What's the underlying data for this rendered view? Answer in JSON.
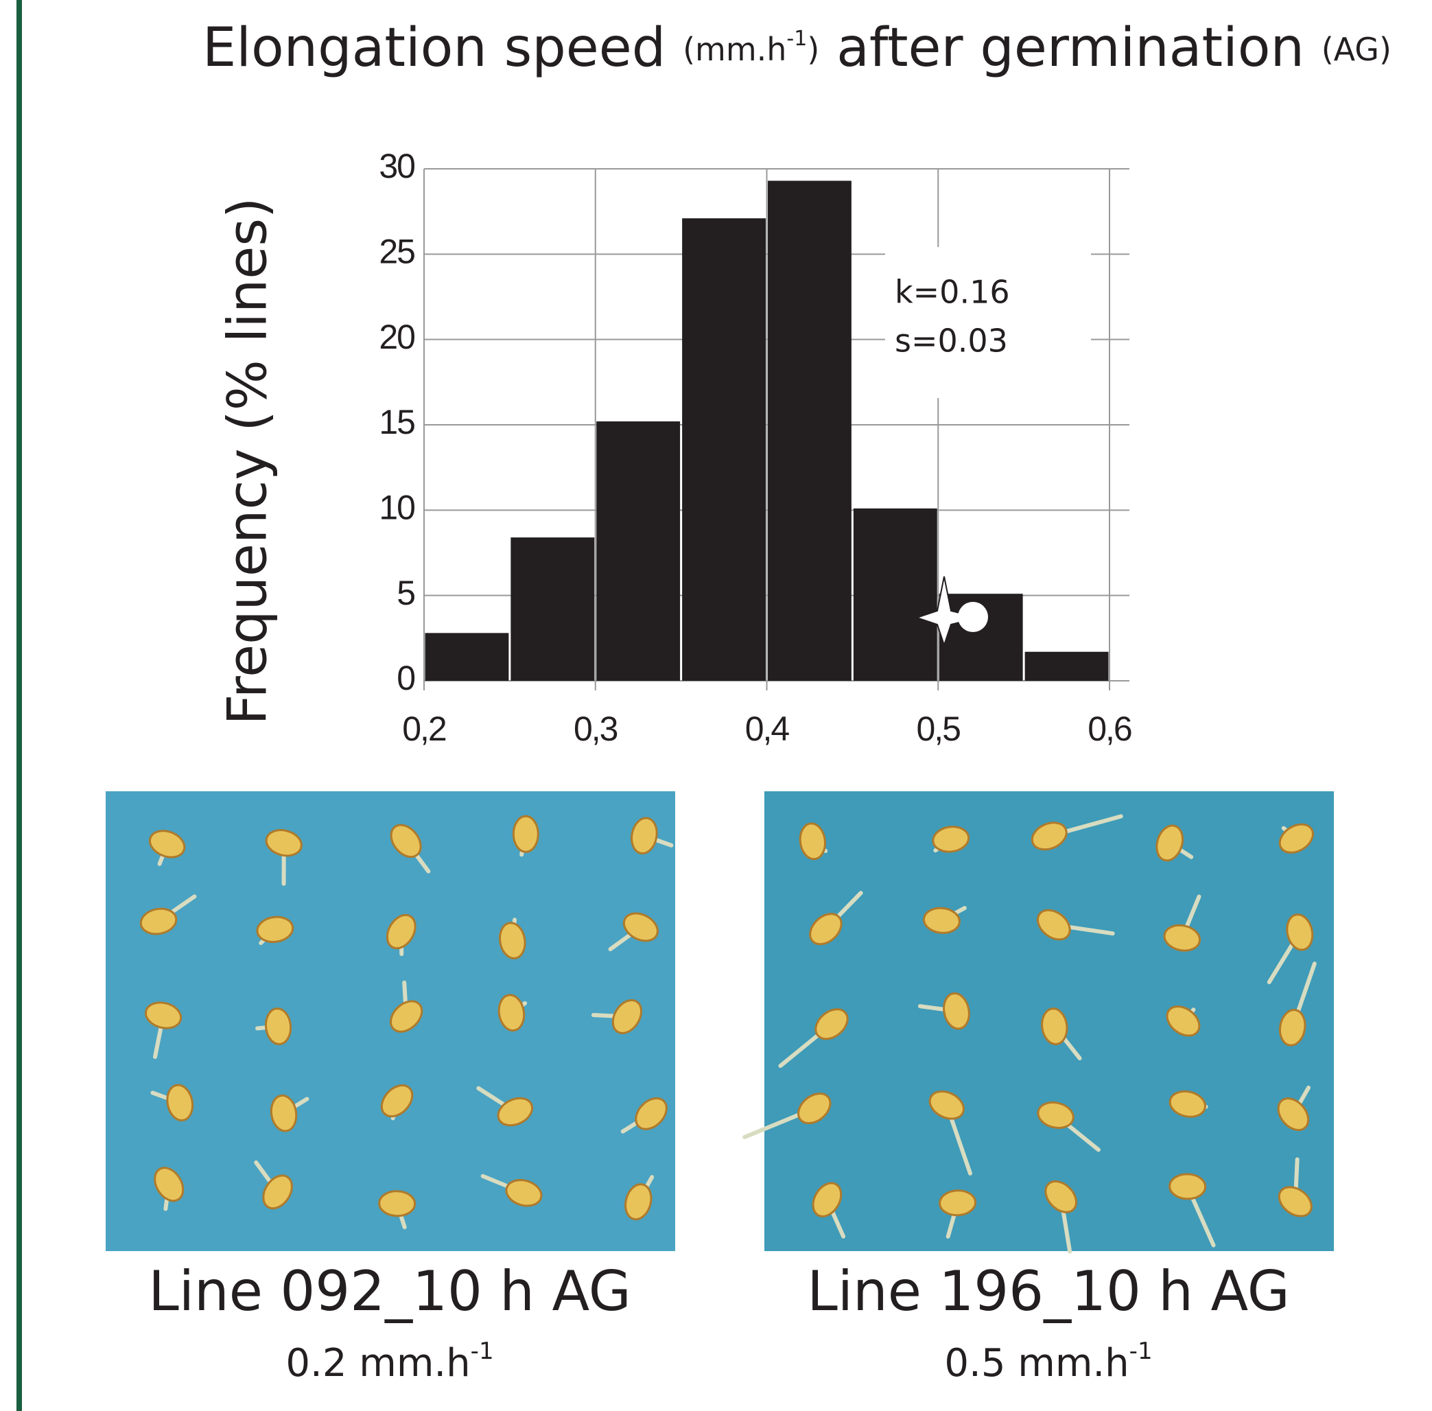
{
  "chart_data": {
    "type": "histogram",
    "title": [
      "Elongation speed",
      "(mm.h",
      "-1",
      ")",
      "after germination",
      "(AG)"
    ],
    "y_label": "Frequency (% lines)",
    "bins": [
      0.2,
      0.25,
      0.3,
      0.35,
      0.4,
      0.45,
      0.5,
      0.55,
      0.6
    ],
    "values": [
      2.8,
      8.4,
      15.2,
      27.1,
      29.3,
      10.1,
      5.1,
      1.7
    ],
    "color": "#231f20",
    "xlim": [
      0.2,
      0.6
    ],
    "xticks": [
      {
        "value": 0.2,
        "label": "0,2"
      },
      {
        "value": 0.3,
        "label": "0,3"
      },
      {
        "value": 0.4,
        "label": "0,4"
      },
      {
        "value": 0.5,
        "label": "0,5"
      },
      {
        "value": 0.6,
        "label": "0,6"
      }
    ],
    "ylim": [
      0,
      30
    ],
    "yticks": [
      0,
      5,
      10,
      15,
      20,
      25,
      30
    ],
    "grid": true,
    "annotations": [
      "k=0.16",
      "s=0.03"
    ]
  },
  "panels": [
    {
      "caption": "Line 092_10 h AG",
      "speed": "0.2 mm.h",
      "speed_sup": "-1"
    },
    {
      "caption": "Line 196_10 h AG",
      "speed": "0.5 mm.h",
      "speed_sup": "-1"
    }
  ]
}
